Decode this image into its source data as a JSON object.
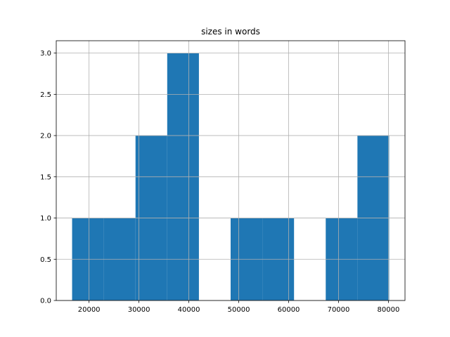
{
  "chart_data": {
    "type": "histogram",
    "title": "sizes in words",
    "bins": [
      16604,
      22958,
      29312,
      35665,
      42019,
      48373,
      54727,
      61080,
      67434,
      73788,
      80141
    ],
    "counts": [
      1,
      1,
      2,
      3,
      0,
      1,
      1,
      0,
      1,
      2
    ],
    "color": "#1f77b4",
    "xlim": [
      13427,
      83318
    ],
    "xticks": [
      20000,
      30000,
      40000,
      50000,
      60000,
      70000,
      80000
    ],
    "ylim": [
      0,
      3.15
    ],
    "yticks": [
      {
        "value": 0,
        "label": "0.0"
      },
      {
        "value": 0.5,
        "label": "0.5"
      },
      {
        "value": 1,
        "label": "1.0"
      },
      {
        "value": 1.5,
        "label": "1.5"
      },
      {
        "value": 2,
        "label": "2.0"
      },
      {
        "value": 2.5,
        "label": "2.5"
      },
      {
        "value": 3,
        "label": "3.0"
      }
    ],
    "grid": true
  }
}
